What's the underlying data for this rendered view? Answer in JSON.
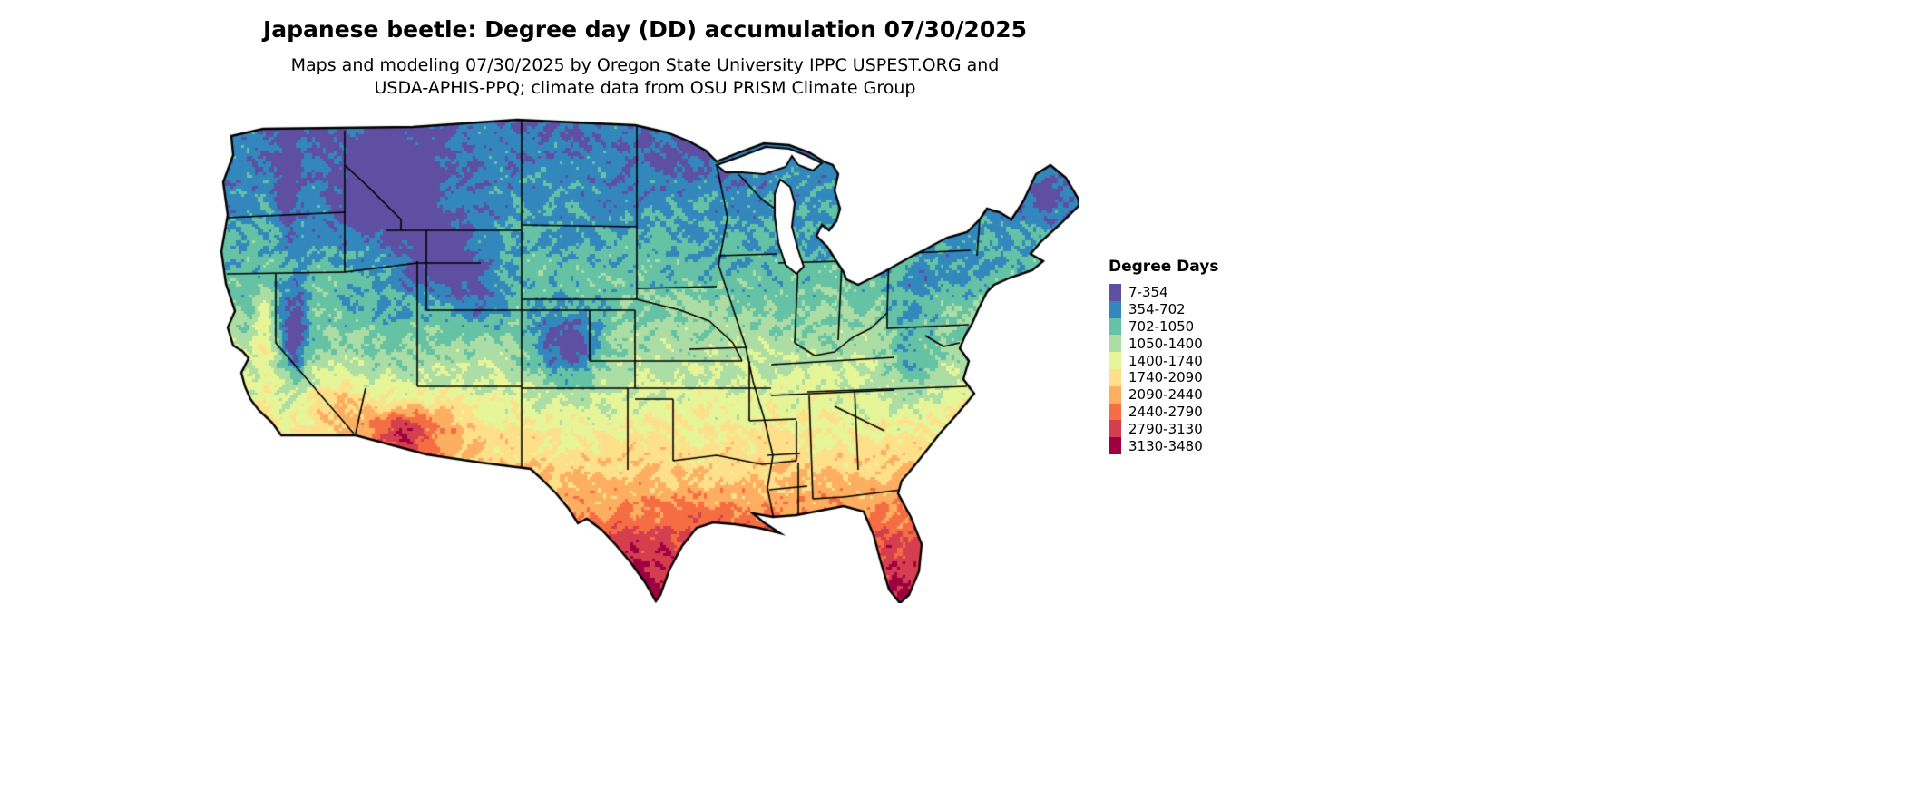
{
  "title": "Japanese beetle: Degree day (DD) accumulation 07/30/2025",
  "subtitle": {
    "line1": "Maps and modeling 07/30/2025 by Oregon State University IPPC USPEST.ORG and",
    "line2": "USDA-APHIS-PPQ; climate data from OSU PRISM Climate Group"
  },
  "legend": {
    "title": "Degree Days",
    "items": [
      {
        "label": "7-354",
        "color": "#5e4fa2"
      },
      {
        "label": "354-702",
        "color": "#3288bd"
      },
      {
        "label": "702-1050",
        "color": "#66c2a5"
      },
      {
        "label": "1050-1400",
        "color": "#abdda4"
      },
      {
        "label": "1400-1740",
        "color": "#e6f598"
      },
      {
        "label": "1740-2090",
        "color": "#fee08b"
      },
      {
        "label": "2090-2440",
        "color": "#fdae61"
      },
      {
        "label": "2440-2790",
        "color": "#f46d43"
      },
      {
        "label": "2790-3130",
        "color": "#d53e4f"
      },
      {
        "label": "3130-3480",
        "color": "#9e0142"
      }
    ],
    "bins": [
      7,
      354,
      702,
      1050,
      1400,
      1740,
      2090,
      2440,
      2790,
      3130,
      3480
    ]
  },
  "map": {
    "region": "Continental United States",
    "kind": "degree-day accumulation raster"
  }
}
